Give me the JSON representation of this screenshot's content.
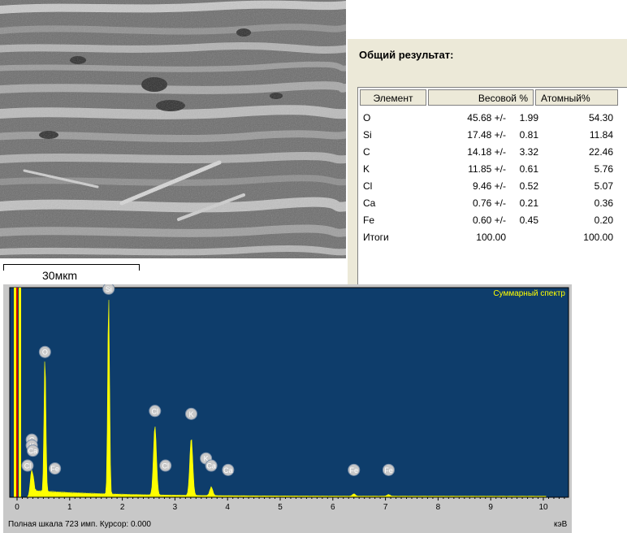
{
  "sem": {
    "scale_label": "30мкm"
  },
  "results": {
    "title": "Общий результат:",
    "columns": [
      "Элемент",
      "Весовой %",
      "Атомный%"
    ],
    "rows": [
      {
        "el": "O",
        "w": "45.68 +/-",
        "e": "1.99",
        "a": "54.30"
      },
      {
        "el": "Si",
        "w": "17.48 +/-",
        "e": "0.81",
        "a": "11.84"
      },
      {
        "el": "C",
        "w": "14.18 +/-",
        "e": "3.32",
        "a": "22.46"
      },
      {
        "el": "K",
        "w": "11.85 +/-",
        "e": "0.61",
        "a": "5.76"
      },
      {
        "el": "Cl",
        "w": "9.46 +/-",
        "e": "0.52",
        "a": "5.07"
      },
      {
        "el": "Ca",
        "w": "0.76 +/-",
        "e": "0.21",
        "a": "0.36"
      },
      {
        "el": "Fe",
        "w": "0.60 +/-",
        "e": "0.45",
        "a": "0.20"
      },
      {
        "el": "Итоги",
        "w": "100.00",
        "e": "",
        "a": "100.00"
      }
    ]
  },
  "spectrum": {
    "title": "Суммарный спектр",
    "footer": "Полная шкала 723 имп. Курсор: 0.000",
    "unit": "кэВ",
    "colors": {
      "bg": "#0e3d6b",
      "trace": "#ffff00",
      "markers": "#c8c8c8"
    }
  },
  "chart_data": {
    "type": "line",
    "title": "Суммарный спектр",
    "xlabel": "кэВ",
    "xlim": [
      0,
      10.6
    ],
    "ylim": [
      0,
      723
    ],
    "x_ticks": [
      "0",
      "1",
      "2",
      "3",
      "4",
      "5",
      "6",
      "7",
      "8",
      "9",
      "10"
    ],
    "peaks": [
      {
        "label": "C",
        "x": 0.28,
        "y": 95
      },
      {
        "label": "O",
        "x": 0.53,
        "y": 470
      },
      {
        "label": "Si",
        "x": 1.74,
        "y": 690
      },
      {
        "label": "Cl",
        "x": 2.62,
        "y": 240
      },
      {
        "label": "K",
        "x": 3.31,
        "y": 200
      },
      {
        "label": "Ca",
        "x": 3.69,
        "y": 30
      },
      {
        "label": "Fe",
        "x": 6.4,
        "y": 8
      },
      {
        "label": "Fe",
        "x": 7.06,
        "y": 6
      }
    ],
    "markers": [
      {
        "label": "C",
        "x": 0.28,
        "y": 200
      },
      {
        "label": "K",
        "x": 0.28,
        "y": 180
      },
      {
        "label": "Ca",
        "x": 0.3,
        "y": 162
      },
      {
        "label": "Cl",
        "x": 0.2,
        "y": 110
      },
      {
        "label": "O",
        "x": 0.53,
        "y": 505
      },
      {
        "label": "Fe",
        "x": 0.72,
        "y": 100
      },
      {
        "label": "Si",
        "x": 1.74,
        "y": 725
      },
      {
        "label": "Cl",
        "x": 2.62,
        "y": 300
      },
      {
        "label": "Cl",
        "x": 2.82,
        "y": 110
      },
      {
        "label": "K",
        "x": 3.31,
        "y": 290
      },
      {
        "label": "K",
        "x": 3.59,
        "y": 135
      },
      {
        "label": "Ca",
        "x": 3.69,
        "y": 110
      },
      {
        "label": "Ca",
        "x": 4.01,
        "y": 95
      },
      {
        "label": "Fe",
        "x": 6.4,
        "y": 95
      },
      {
        "label": "Fe",
        "x": 7.06,
        "y": 95
      }
    ]
  }
}
